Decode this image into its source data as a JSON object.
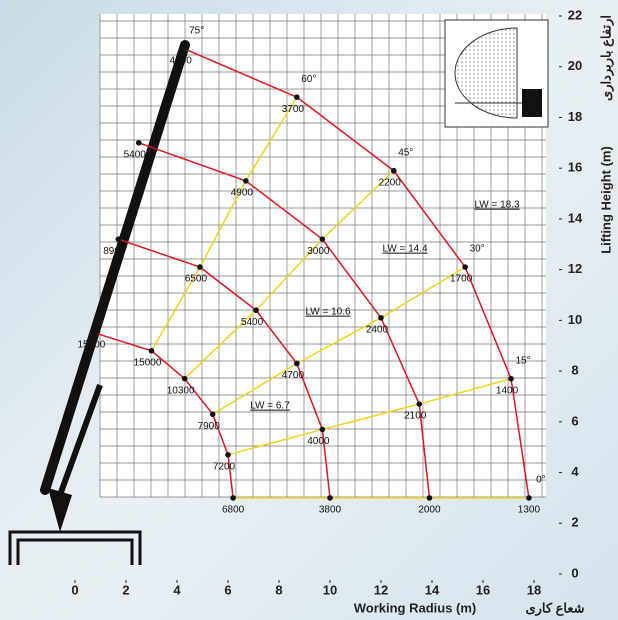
{
  "chart_data": {
    "type": "load-chart",
    "x_label": "Working Radius (m)",
    "x_label_fa": "شعاع کاری",
    "y_label": "Lifting Height (m)",
    "y_label_fa": "ارتفاع باربرداری",
    "xlim": [
      0,
      18
    ],
    "ylim": [
      0,
      22
    ],
    "xticks": [
      0,
      2,
      4,
      6,
      8,
      10,
      12,
      14,
      16,
      18
    ],
    "yticks": [
      0,
      2,
      4,
      6,
      8,
      10,
      12,
      14,
      16,
      18,
      20,
      22
    ],
    "angle_labels": [
      "75°",
      "60°",
      "45°",
      "30°",
      "15°",
      "0°"
    ],
    "series": [
      {
        "name": "LW = 6.7",
        "color": "#e0151f",
        "x": [
          0.8,
          3.0,
          4.3,
          5.4,
          6.0,
          6.2
        ],
        "values": [
          9.5,
          8.8,
          7.7,
          6.3,
          4.7,
          3.0
        ],
        "loads": [
          15000,
          15000,
          10300,
          7900,
          7200,
          6800
        ]
      },
      {
        "name": "LW = 10.6",
        "color": "#e0151f",
        "x": [
          1.7,
          4.9,
          7.1,
          8.7,
          9.7,
          10.0
        ],
        "values": [
          13.2,
          12.1,
          10.4,
          8.3,
          5.7,
          3.0
        ],
        "loads": [
          8900,
          6500,
          5400,
          4700,
          4000,
          3800
        ]
      },
      {
        "name": "LW = 14.4",
        "color": "#e0151f",
        "x": [
          2.5,
          6.7,
          9.7,
          12.0,
          13.5,
          13.9
        ],
        "values": [
          17.0,
          15.5,
          13.2,
          10.1,
          6.7,
          3.0
        ],
        "loads": [
          5400,
          4900,
          3000,
          2400,
          2100,
          2000
        ]
      },
      {
        "name": "LW = 18.3",
        "color": "#e0151f",
        "x": [
          4.3,
          8.7,
          12.5,
          15.3,
          17.1,
          17.8
        ],
        "values": [
          20.7,
          18.8,
          15.9,
          12.1,
          7.7,
          3.0
        ],
        "loads": [
          4100,
          3700,
          2200,
          1700,
          1400,
          1300
        ]
      }
    ]
  }
}
